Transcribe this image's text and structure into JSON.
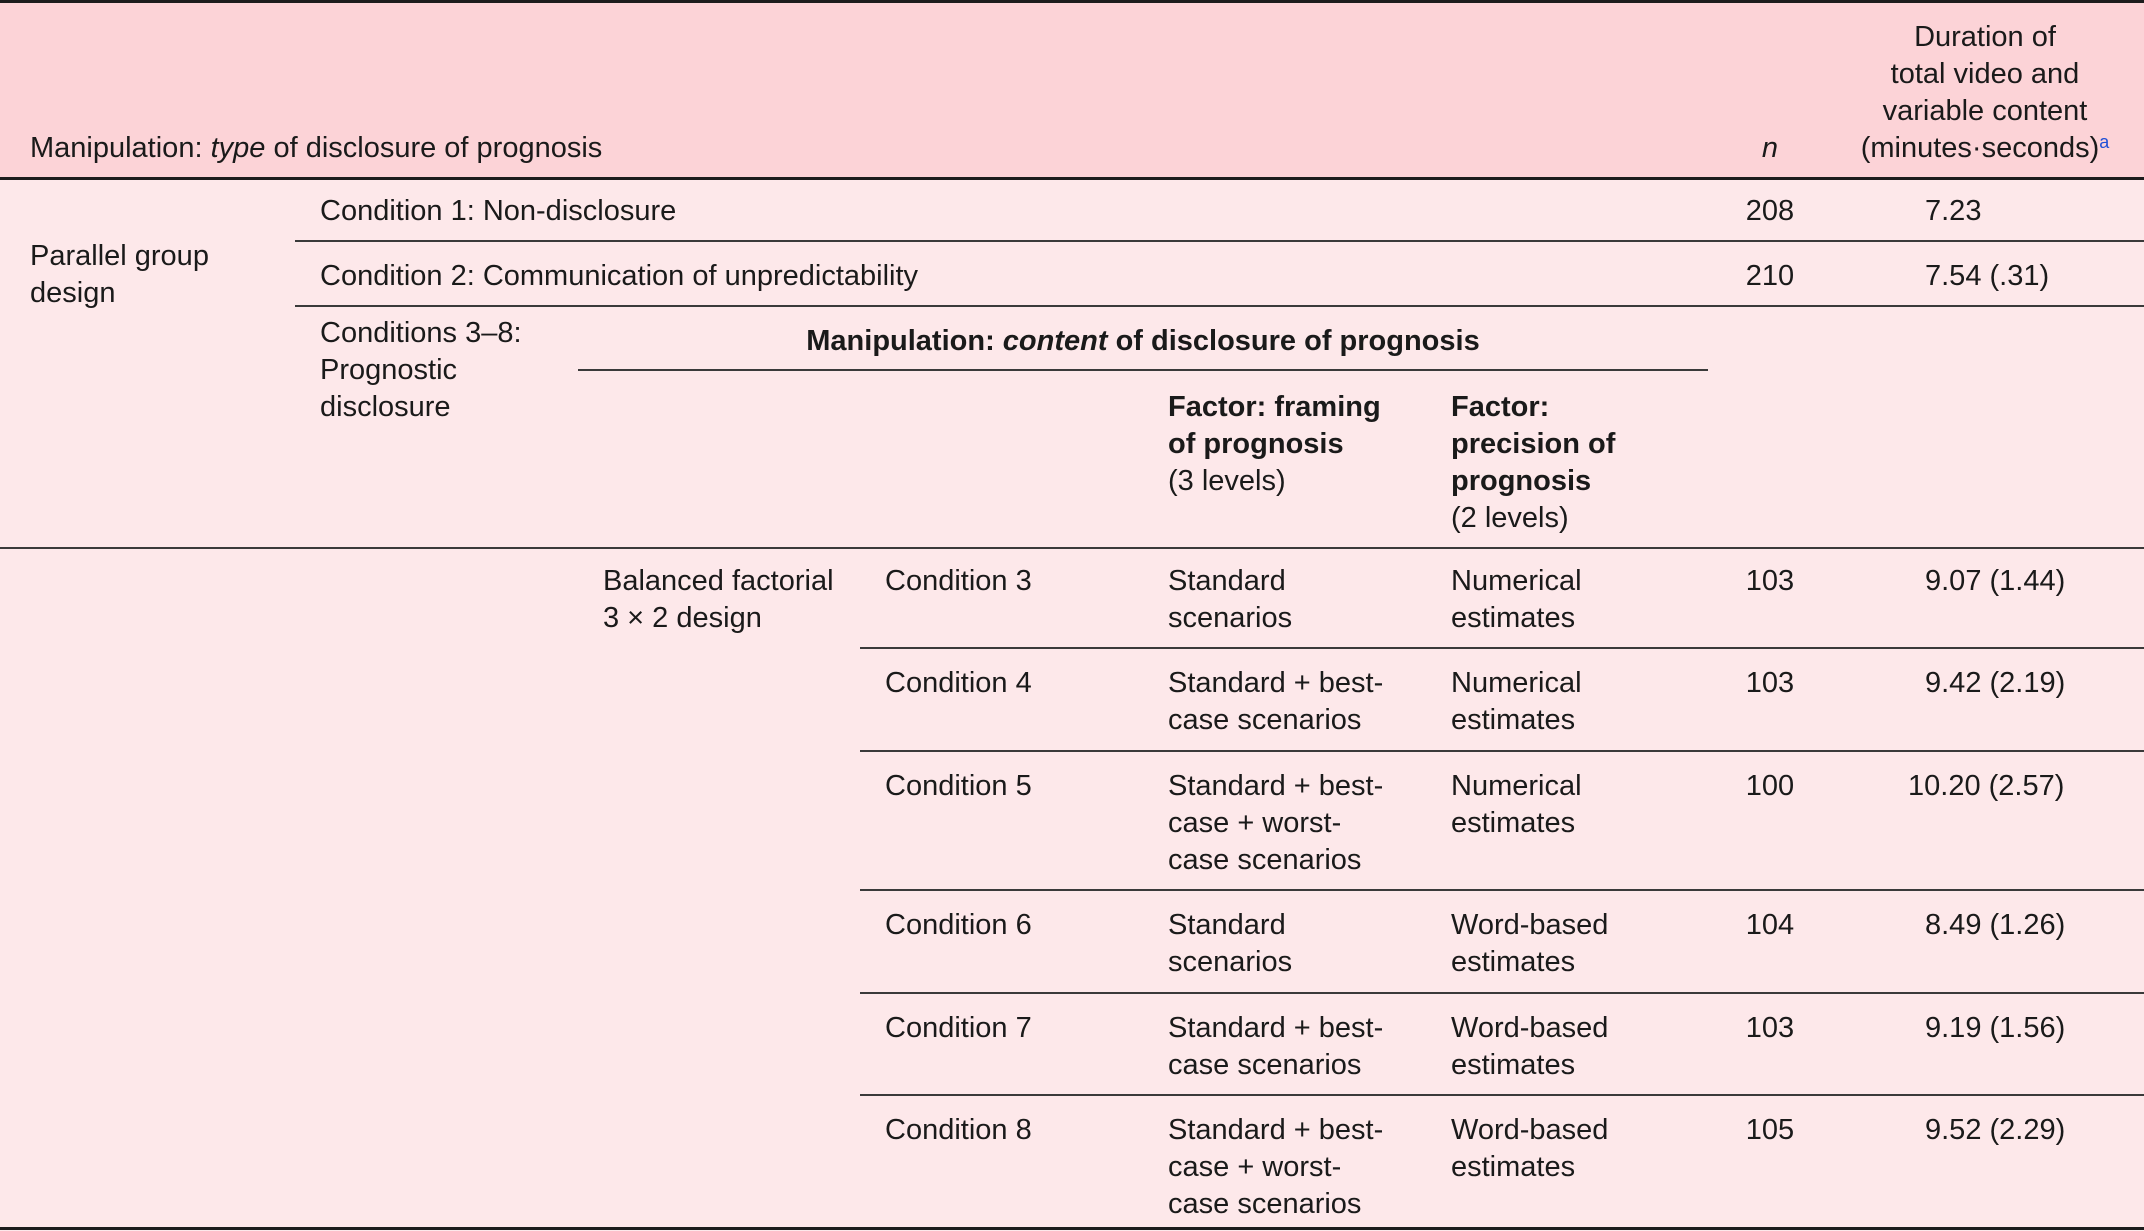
{
  "header": {
    "manipulation_prefix": "Manipulation: ",
    "manipulation_em": "type",
    "manipulation_suffix": " of disclosure of prognosis",
    "n_label": "n",
    "duration_label": "Duration of\ntotal video and\nvariable content\n(minutes·seconds)",
    "duration_note": "a"
  },
  "parallel": {
    "design_label": "Parallel group\ndesign",
    "rows": [
      {
        "condition": "Condition 1: Non-disclosure",
        "n": "208",
        "duration": "7.23"
      },
      {
        "condition": "Condition 2: Communication of unpredictability",
        "n": "210",
        "duration": "7.54 (.31)"
      }
    ],
    "prognostic_label": "Conditions 3–8:\nPrognostic\ndisclosure"
  },
  "content_header": {
    "prefix": "Manipulation: ",
    "em": "content",
    "suffix": " of disclosure of prognosis",
    "framing_bold": "Factor: framing\nof prognosis",
    "framing_levels": "(3 levels)",
    "precision_bold": "Factor:\nprecision of\nprognosis",
    "precision_levels": "(2 levels)"
  },
  "factorial": {
    "design_label": "Balanced factorial\n3 × 2 design",
    "rows": [
      {
        "condition": "Condition 3",
        "framing": "Standard\nscenarios",
        "precision": "Numerical\nestimates",
        "n": "103",
        "duration": "9.07 (1.44)"
      },
      {
        "condition": "Condition 4",
        "framing": "Standard + best-\ncase scenarios",
        "precision": "Numerical\nestimates",
        "n": "103",
        "duration": "9.42 (2.19)"
      },
      {
        "condition": "Condition 5",
        "framing": "Standard + best-\ncase + worst-\ncase scenarios",
        "precision": "Numerical\nestimates",
        "n": "100",
        "duration": "10.20 (2.57)"
      },
      {
        "condition": "Condition 6",
        "framing": "Standard\nscenarios",
        "precision": "Word-based\nestimates",
        "n": "104",
        "duration": "8.49 (1.26)"
      },
      {
        "condition": "Condition 7",
        "framing": "Standard + best-\ncase scenarios",
        "precision": "Word-based\nestimates",
        "n": "103",
        "duration": "9.19 (1.56)"
      },
      {
        "condition": "Condition 8",
        "framing": "Standard + best-\ncase + worst-\ncase scenarios",
        "precision": "Word-based\nestimates",
        "n": "105",
        "duration": "9.52 (2.29)"
      }
    ]
  }
}
